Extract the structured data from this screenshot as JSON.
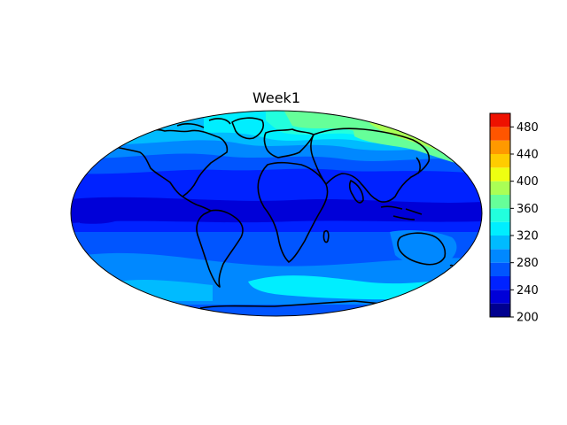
{
  "map": {
    "title": "Week1",
    "projection": "mollweide",
    "variable_colormap": "jet",
    "features": [
      "coastlines"
    ]
  },
  "colorbar": {
    "ticks": [
      "200",
      "240",
      "280",
      "320",
      "360",
      "400",
      "440",
      "480"
    ],
    "range": [
      200,
      500
    ],
    "levels": [
      200,
      220,
      240,
      260,
      280,
      300,
      320,
      340,
      360,
      380,
      400,
      420,
      440,
      460,
      480,
      500
    ],
    "colors": [
      "#00008f",
      "#0000d8",
      "#0022ff",
      "#0055ff",
      "#0088ff",
      "#00bbff",
      "#00eeff",
      "#22ffdd",
      "#66ff99",
      "#aaff55",
      "#eeff11",
      "#ffcc00",
      "#ff9900",
      "#ff5500",
      "#ee1100",
      "#a30000"
    ]
  }
}
